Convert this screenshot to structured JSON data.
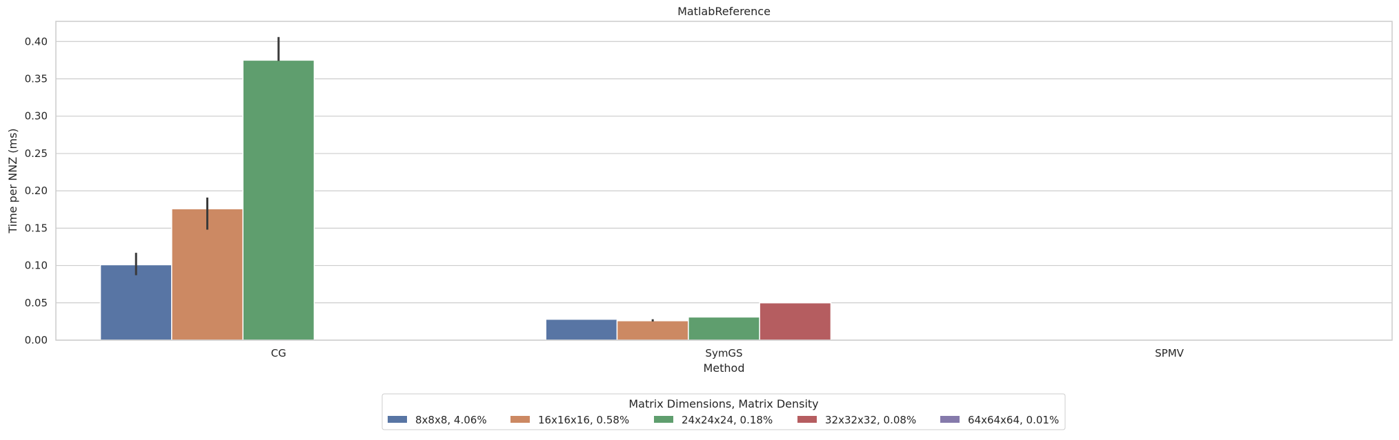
{
  "chart_data": {
    "type": "bar",
    "title": "MatlabReference",
    "xlabel": "Method",
    "ylabel": "Time per NNZ (ms)",
    "ylim": [
      0,
      0.427
    ],
    "yticks": [
      0.0,
      0.05,
      0.1,
      0.15,
      0.2,
      0.25,
      0.3,
      0.35,
      0.4
    ],
    "ytick_labels": [
      "0.00",
      "0.05",
      "0.10",
      "0.15",
      "0.20",
      "0.25",
      "0.30",
      "0.35",
      "0.40"
    ],
    "grid": true,
    "categories": [
      "CG",
      "SymGS",
      "SPMV"
    ],
    "legend": {
      "title": "Matrix Dimensions, Matrix Density",
      "placement": "bottom-center-outside"
    },
    "series": [
      {
        "name": "8x8x8, 4.06%",
        "color": "#5875a4",
        "values": [
          0.101,
          0.028,
          null
        ],
        "err_low": [
          0.087,
          null,
          null
        ],
        "err_high": [
          0.117,
          null,
          null
        ]
      },
      {
        "name": "16x16x16, 0.58%",
        "color": "#cc8963",
        "values": [
          0.176,
          0.026,
          null
        ],
        "err_low": [
          0.148,
          0.025,
          null
        ],
        "err_high": [
          0.191,
          0.028,
          null
        ]
      },
      {
        "name": "24x24x24, 0.18%",
        "color": "#5f9e6e",
        "values": [
          0.375,
          0.031,
          null
        ],
        "err_low": [
          0.374,
          null,
          null
        ],
        "err_high": [
          0.406,
          null,
          null
        ]
      },
      {
        "name": "32x32x32, 0.08%",
        "color": "#b55d60",
        "values": [
          null,
          0.05,
          null
        ],
        "err_low": [
          null,
          null,
          null
        ],
        "err_high": [
          null,
          null,
          null
        ]
      },
      {
        "name": "64x64x64, 0.01%",
        "color": "#857aab",
        "values": [
          null,
          null,
          null
        ],
        "err_low": [
          null,
          null,
          null
        ],
        "err_high": [
          null,
          null,
          null
        ]
      }
    ]
  }
}
